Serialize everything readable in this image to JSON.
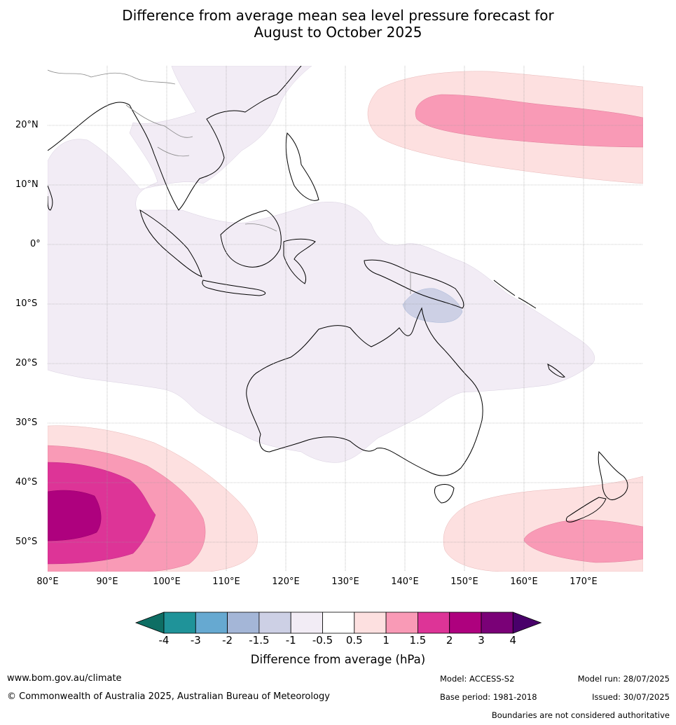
{
  "title": {
    "line1": "Difference from average mean sea level pressure forecast for",
    "line2": "August to October 2025"
  },
  "map": {
    "lat_labels": [
      "20°N",
      "10°N",
      "0°",
      "10°S",
      "20°S",
      "30°S",
      "40°S",
      "50°S"
    ],
    "lon_labels": [
      "80°E",
      "90°E",
      "100°E",
      "110°E",
      "120°E",
      "130°E",
      "140°E",
      "150°E",
      "160°E",
      "170°E"
    ],
    "extent": {
      "lon": [
        80,
        180
      ],
      "lat": [
        -55,
        30
      ]
    }
  },
  "colorbar": {
    "ticks": [
      "-4",
      "-3",
      "-2",
      "-1.5",
      "-1",
      "-0.5",
      "0.5",
      "1",
      "1.5",
      "2",
      "3",
      "4"
    ],
    "colors": [
      "#0e6e64",
      "#1f9399",
      "#66a9d1",
      "#a4b6d7",
      "#cdd0e5",
      "#f2ecf5",
      "#ffffff",
      "#fde0e0",
      "#f99ab6",
      "#dd3497",
      "#ae017e",
      "#7a0177",
      "#49006a"
    ],
    "label": "Difference from average (hPa)"
  },
  "footer": {
    "website": "www.bom.gov.au/climate",
    "copyright": "© Commonwealth of Australia 2025, Australian Bureau of Meteorology",
    "model": "Model: ACCESS-S2",
    "model_run": "Model run: 28/07/2025",
    "base_period": "Base period: 1981-2018",
    "issued": "Issued: 30/07/2025",
    "disclaimer": "Boundaries are not considered authoritative"
  }
}
